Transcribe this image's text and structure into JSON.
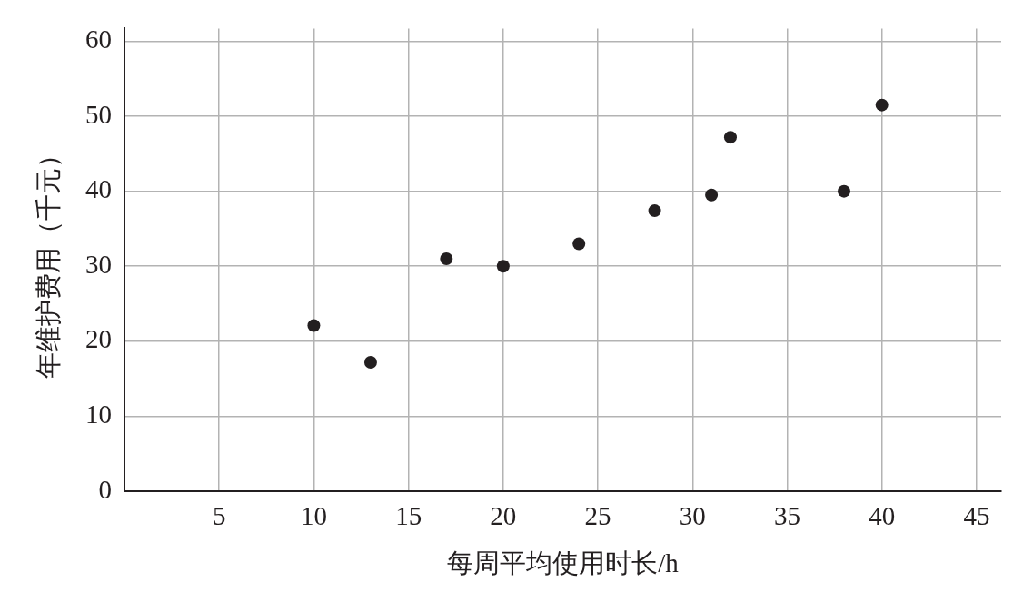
{
  "chart_data": {
    "type": "scatter",
    "xlabel": "每周平均使用时长/h",
    "ylabel": "年维护费用（千元）",
    "x": [
      10,
      13,
      17,
      20,
      24,
      28,
      31,
      32,
      38,
      40
    ],
    "series": [
      {
        "color": "#231f20",
        "values": [
          22.1,
          17.2,
          31,
          30,
          33,
          37.4,
          39.5,
          47.2,
          40,
          51.5
        ]
      }
    ],
    "xlim": [
      0,
      46.3
    ],
    "xticks": [
      5,
      10,
      15,
      20,
      25,
      30,
      35,
      40,
      45
    ],
    "ylim": [
      0,
      61.7
    ],
    "yticks": [
      0,
      10,
      20,
      30,
      40,
      50,
      60
    ],
    "grid": true,
    "marker": "circle"
  }
}
